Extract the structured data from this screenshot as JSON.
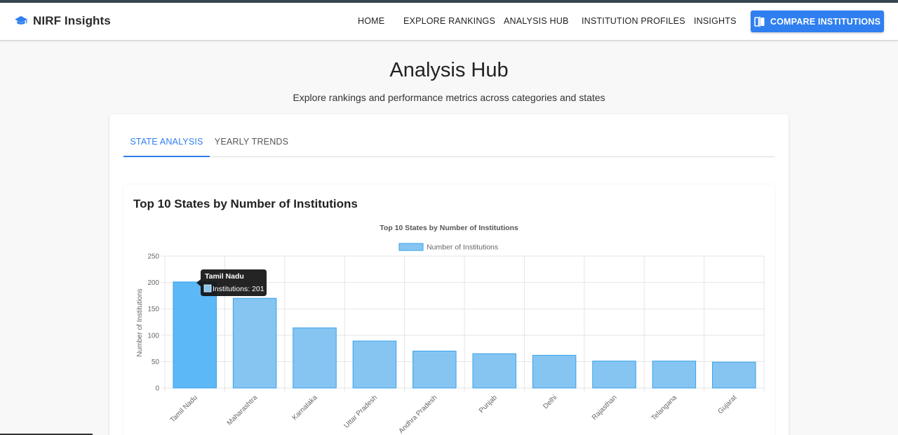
{
  "header": {
    "brand": "NIRF Insights",
    "brand_icon": "graduation-cap-icon",
    "nav": [
      "HOME",
      "EXPLORE RANKINGS",
      "ANALYSIS HUB",
      "INSTITUTION PROFILES",
      "INSIGHTS"
    ],
    "compare_button": "COMPARE INSTITUTIONS",
    "compare_icon": "compare-icon",
    "accent_color": "#2f7ff0"
  },
  "page": {
    "title": "Analysis Hub",
    "subtitle": "Explore rankings and performance metrics across categories and states"
  },
  "tabs": [
    {
      "label": "STATE ANALYSIS",
      "active": true
    },
    {
      "label": "YEARLY TRENDS",
      "active": false
    }
  ],
  "chart_section": {
    "heading": "Top 10 States by Number of Institutions"
  },
  "tooltip": {
    "title": "Tamil Nadu",
    "label": "Institutions: 201"
  },
  "chart_data": {
    "type": "bar",
    "title": "Top 10 States by Number of Institutions",
    "ylabel": "Number of Institutions",
    "xlabel": "",
    "categories": [
      "Tamil Nadu",
      "Maharashtra",
      "Karnataka",
      "Uttar Pradesh",
      "Andhra Pradesh",
      "Punjab",
      "Delhi",
      "Rajasthan",
      "Telangana",
      "Gujarat"
    ],
    "series": [
      {
        "name": "Number of Institutions",
        "values": [
          201,
          170,
          114,
          89,
          70,
          65,
          62,
          51,
          51,
          49
        ]
      }
    ],
    "ylim": [
      0,
      250
    ],
    "yticks": [
      0,
      50,
      100,
      150,
      200,
      250
    ],
    "grid": true,
    "legend": "top-center",
    "bar_color": "#86c5f2",
    "bar_border": "#36a2eb",
    "highlight_color": "#5cb8f7"
  }
}
